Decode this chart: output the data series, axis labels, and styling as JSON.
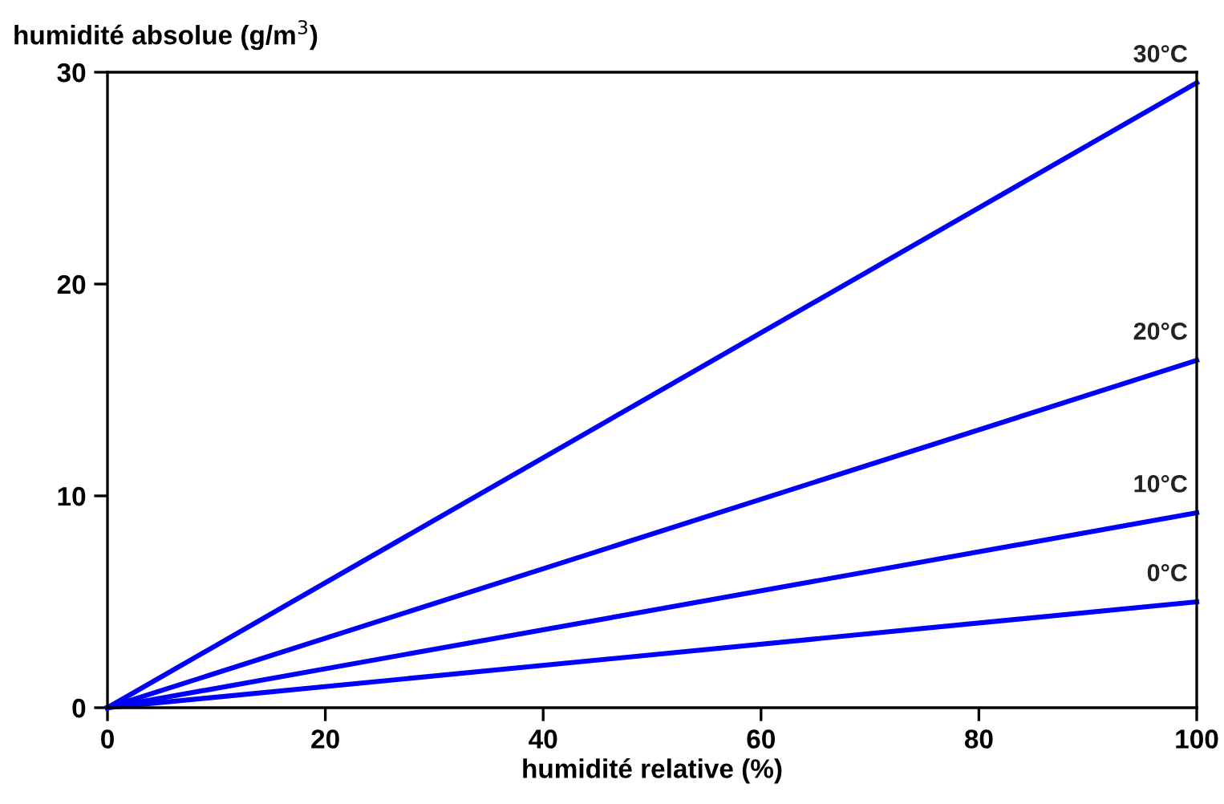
{
  "chart_data": {
    "type": "line",
    "xlabel": "humidité relative (%)",
    "ylabel": "humidité absolue (g/m$^{3}$)",
    "x": [
      0,
      100
    ],
    "xlim": [
      0,
      100
    ],
    "ylim": [
      0,
      30
    ],
    "xticks": [
      0,
      20,
      40,
      60,
      80,
      100
    ],
    "yticks": [
      0,
      10,
      20,
      30
    ],
    "grid": false,
    "legend": false,
    "marker": "none",
    "line_style": "solid",
    "series": [
      {
        "name": "30°C",
        "color": "#0000ff",
        "values": [
          0,
          29.5
        ]
      },
      {
        "name": "20°C",
        "color": "#0000ff",
        "values": [
          0,
          16.4
        ]
      },
      {
        "name": "10°C",
        "color": "#0000ff",
        "values": [
          0,
          9.2
        ]
      },
      {
        "name": "0°C",
        "color": "#0000ff",
        "values": [
          0,
          5.0
        ]
      }
    ]
  }
}
